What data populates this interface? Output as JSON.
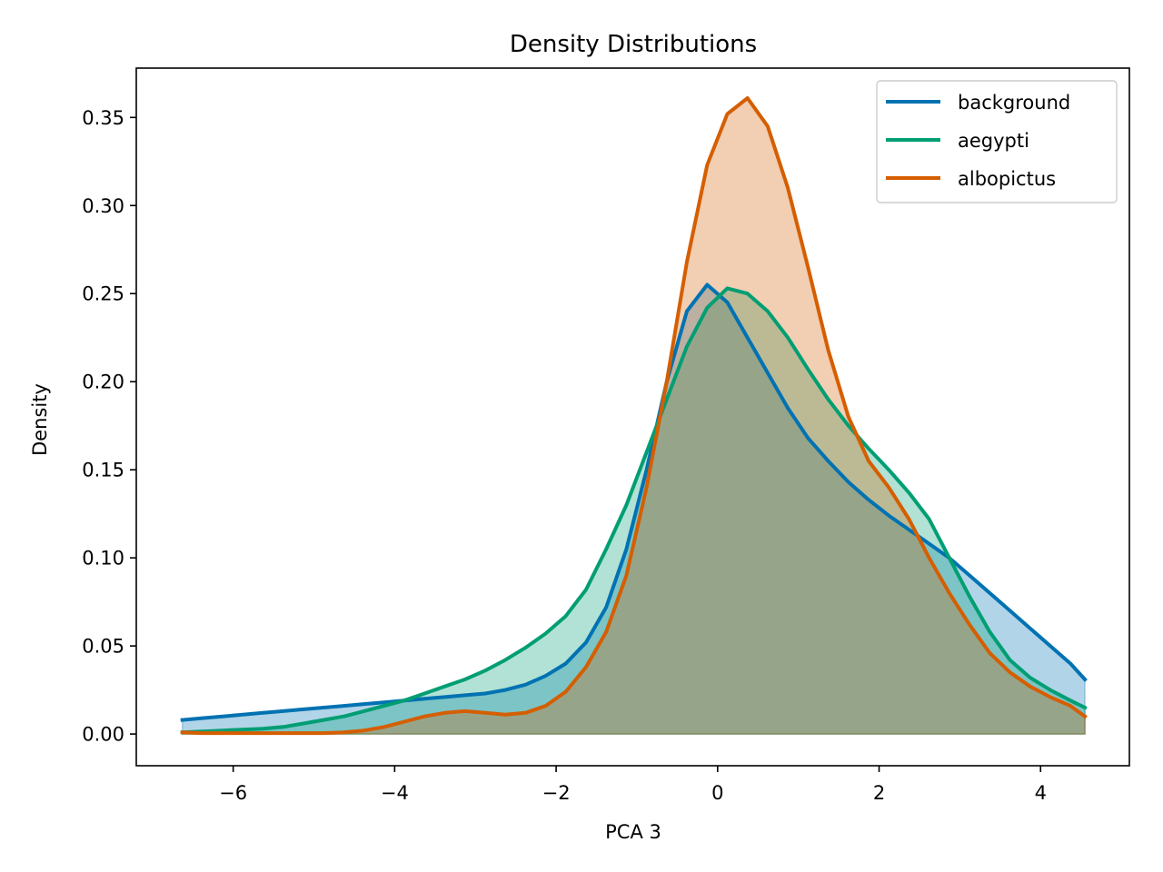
{
  "chart_data": {
    "type": "area",
    "title": "Density Distributions",
    "xlabel": "PCA 3",
    "ylabel": "Density",
    "xlim": [
      -7.2,
      5.1
    ],
    "ylim": [
      -0.018,
      0.378
    ],
    "xticks": [
      -6,
      -4,
      -2,
      0,
      2,
      4
    ],
    "xtick_labels": [
      "−6",
      "−4",
      "−2",
      "0",
      "2",
      "4"
    ],
    "yticks": [
      0.0,
      0.05,
      0.1,
      0.15,
      0.2,
      0.25,
      0.3,
      0.35
    ],
    "ytick_labels": [
      "0.00",
      "0.05",
      "0.10",
      "0.15",
      "0.20",
      "0.25",
      "0.30",
      "0.35"
    ],
    "grid": false,
    "legend_position": "top-right",
    "x": [
      -6.63,
      -6.38,
      -6.13,
      -5.88,
      -5.63,
      -5.38,
      -5.13,
      -4.88,
      -4.63,
      -4.38,
      -4.13,
      -3.88,
      -3.63,
      -3.38,
      -3.13,
      -2.88,
      -2.63,
      -2.38,
      -2.13,
      -1.88,
      -1.63,
      -1.38,
      -1.13,
      -0.88,
      -0.63,
      -0.38,
      -0.13,
      0.12,
      0.37,
      0.62,
      0.87,
      1.12,
      1.37,
      1.62,
      1.87,
      2.12,
      2.37,
      2.62,
      2.87,
      3.12,
      3.37,
      3.62,
      3.87,
      4.12,
      4.37,
      4.55
    ],
    "series": [
      {
        "name": "background",
        "color": "#0072b2",
        "values": [
          0.008,
          0.009,
          0.01,
          0.011,
          0.012,
          0.013,
          0.014,
          0.015,
          0.016,
          0.017,
          0.018,
          0.019,
          0.02,
          0.021,
          0.022,
          0.023,
          0.025,
          0.028,
          0.033,
          0.04,
          0.052,
          0.072,
          0.105,
          0.15,
          0.2,
          0.24,
          0.255,
          0.245,
          0.225,
          0.205,
          0.185,
          0.168,
          0.155,
          0.143,
          0.133,
          0.124,
          0.116,
          0.108,
          0.1,
          0.09,
          0.08,
          0.07,
          0.06,
          0.05,
          0.04,
          0.031
        ]
      },
      {
        "name": "aegypti",
        "color": "#009e73",
        "values": [
          0.001,
          0.0015,
          0.002,
          0.0025,
          0.003,
          0.004,
          0.006,
          0.008,
          0.01,
          0.013,
          0.016,
          0.019,
          0.023,
          0.027,
          0.031,
          0.036,
          0.042,
          0.049,
          0.057,
          0.067,
          0.082,
          0.105,
          0.13,
          0.16,
          0.19,
          0.22,
          0.242,
          0.253,
          0.25,
          0.24,
          0.225,
          0.207,
          0.19,
          0.175,
          0.162,
          0.15,
          0.137,
          0.122,
          0.1,
          0.078,
          0.058,
          0.042,
          0.032,
          0.025,
          0.019,
          0.015
        ]
      },
      {
        "name": "albopictus",
        "color": "#d55e00",
        "values": [
          0.001,
          0.0005,
          0.0005,
          0.0005,
          0.0005,
          0.0005,
          0.0005,
          0.0005,
          0.001,
          0.002,
          0.004,
          0.007,
          0.01,
          0.012,
          0.013,
          0.012,
          0.011,
          0.012,
          0.016,
          0.024,
          0.038,
          0.058,
          0.09,
          0.14,
          0.2,
          0.268,
          0.323,
          0.352,
          0.361,
          0.345,
          0.31,
          0.265,
          0.218,
          0.18,
          0.155,
          0.14,
          0.122,
          0.1,
          0.08,
          0.062,
          0.046,
          0.035,
          0.027,
          0.021,
          0.016,
          0.01
        ]
      }
    ]
  }
}
